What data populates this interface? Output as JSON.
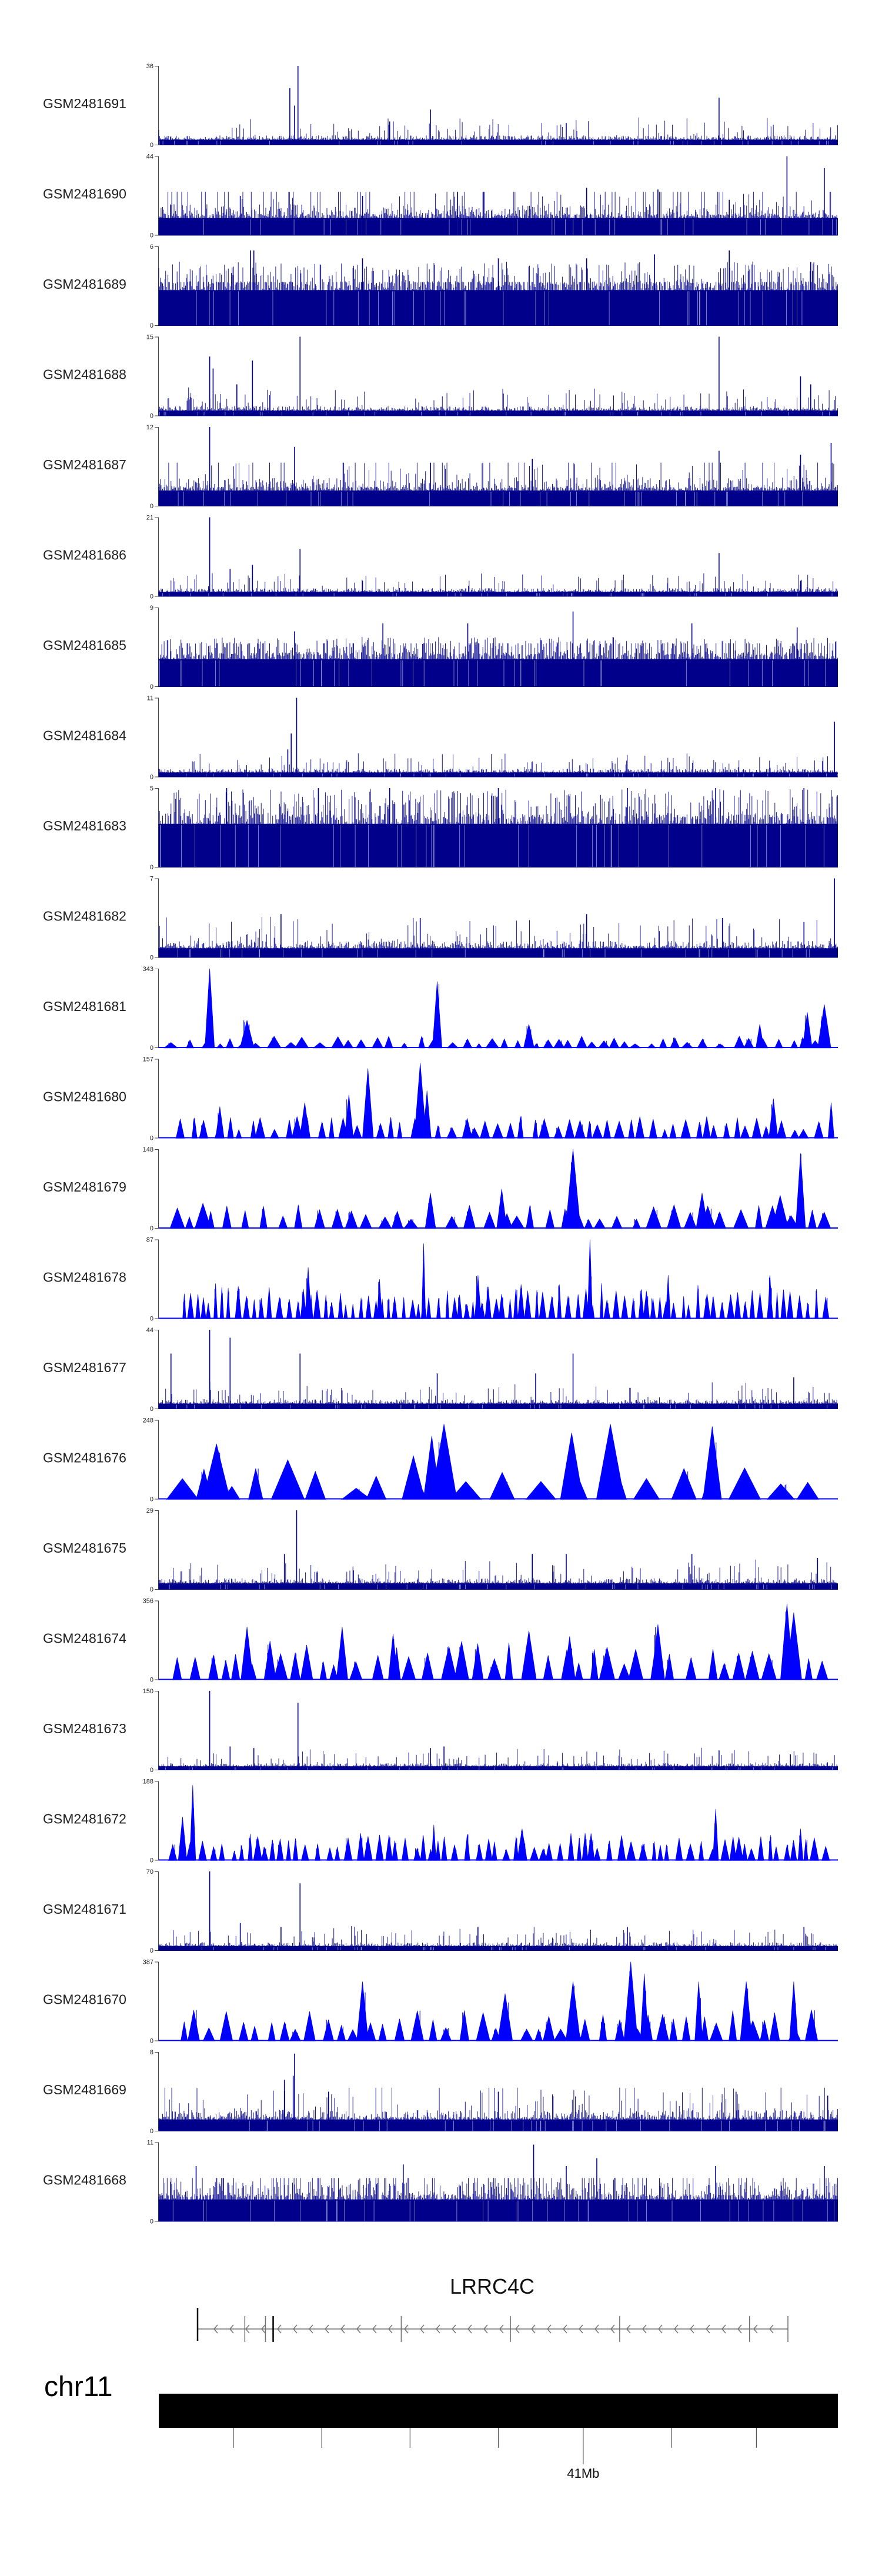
{
  "chart_data": {
    "type": "area",
    "description_style": "genome browser coverage tracks",
    "colors": {
      "dense": "#00008b",
      "sparse": "#0000ff",
      "ideogram": "#000000",
      "gene": "#707070"
    },
    "tracks": [
      {
        "name": "GSM2481691",
        "ymax": 36,
        "ymin": 0,
        "style": "dense",
        "seed": 11,
        "base": 0.07,
        "peaks": [
          [
            0.205,
            1.0
          ],
          [
            0.193,
            0.72
          ],
          [
            0.2,
            0.5
          ],
          [
            0.4,
            0.45
          ],
          [
            0.825,
            0.6
          ],
          [
            0.34,
            0.3
          ],
          [
            0.6,
            0.28
          ]
        ]
      },
      {
        "name": "GSM2481690",
        "ymax": 44,
        "ymin": 0,
        "style": "dense",
        "seed": 12,
        "base": 0.22,
        "peaks": [
          [
            0.925,
            1.0
          ],
          [
            0.44,
            0.55
          ],
          [
            0.63,
            0.6
          ],
          [
            0.735,
            0.58
          ],
          [
            0.3,
            0.5
          ],
          [
            0.84,
            0.45
          ],
          [
            0.12,
            0.5
          ],
          [
            0.98,
            0.85
          ]
        ]
      },
      {
        "name": "GSM2481689",
        "ymax": 6,
        "ymin": 0,
        "style": "dense",
        "seed": 13,
        "base": 0.45,
        "peaks": [
          [
            0.135,
            0.95
          ],
          [
            0.14,
            0.95
          ],
          [
            0.84,
            0.95
          ],
          [
            0.73,
            0.9
          ],
          [
            0.3,
            0.85
          ],
          [
            0.5,
            0.85
          ],
          [
            0.63,
            0.85
          ],
          [
            0.96,
            0.8
          ]
        ]
      },
      {
        "name": "GSM2481688",
        "ymax": 15,
        "ymin": 0,
        "style": "dense",
        "seed": 14,
        "base": 0.07,
        "peaks": [
          [
            0.208,
            1.0
          ],
          [
            0.825,
            1.0
          ],
          [
            0.138,
            0.7
          ],
          [
            0.08,
            0.6
          ],
          [
            0.075,
            0.75
          ],
          [
            0.115,
            0.4
          ],
          [
            0.945,
            0.5
          ],
          [
            0.96,
            0.4
          ]
        ]
      },
      {
        "name": "GSM2481687",
        "ymax": 12,
        "ymin": 0,
        "style": "dense",
        "seed": 15,
        "base": 0.2,
        "peaks": [
          [
            0.075,
            1.0
          ],
          [
            0.2,
            0.75
          ],
          [
            0.825,
            0.7
          ],
          [
            0.4,
            0.55
          ],
          [
            0.55,
            0.6
          ],
          [
            0.945,
            0.65
          ],
          [
            0.99,
            0.8
          ]
        ]
      },
      {
        "name": "GSM2481686",
        "ymax": 21,
        "ymin": 0,
        "style": "dense",
        "seed": 16,
        "base": 0.06,
        "peaks": [
          [
            0.075,
            1.0
          ],
          [
            0.138,
            0.4
          ],
          [
            0.208,
            0.6
          ],
          [
            0.105,
            0.35
          ],
          [
            0.825,
            0.55
          ],
          [
            0.945,
            0.2
          ],
          [
            0.3,
            0.2
          ]
        ]
      },
      {
        "name": "GSM2481685",
        "ymax": 9,
        "ymin": 0,
        "style": "dense",
        "seed": 17,
        "base": 0.35,
        "peaks": [
          [
            0.61,
            0.95
          ],
          [
            0.33,
            0.8
          ],
          [
            0.455,
            0.8
          ],
          [
            0.785,
            0.8
          ],
          [
            0.2,
            0.7
          ],
          [
            0.94,
            0.75
          ]
        ]
      },
      {
        "name": "GSM2481684",
        "ymax": 11,
        "ymin": 0,
        "style": "dense",
        "seed": 18,
        "base": 0.06,
        "peaks": [
          [
            0.203,
            1.0
          ],
          [
            0.195,
            0.55
          ],
          [
            0.19,
            0.35
          ],
          [
            0.995,
            0.7
          ],
          [
            0.62,
            0.15
          ],
          [
            0.9,
            0.12
          ]
        ]
      },
      {
        "name": "GSM2481683",
        "ymax": 5,
        "ymin": 0,
        "style": "dense",
        "seed": 19,
        "base": 0.55,
        "peaks": [
          [
            0.1,
            1.0
          ],
          [
            0.235,
            1.0
          ],
          [
            0.34,
            1.0
          ],
          [
            0.5,
            1.0
          ],
          [
            0.69,
            1.0
          ],
          [
            0.82,
            1.0
          ],
          [
            0.95,
            1.0
          ]
        ]
      },
      {
        "name": "GSM2481682",
        "ymax": 7,
        "ymin": 0,
        "style": "dense",
        "seed": 20,
        "base": 0.12,
        "peaks": [
          [
            0.995,
            1.0
          ],
          [
            0.18,
            0.55
          ],
          [
            0.385,
            0.5
          ],
          [
            0.63,
            0.55
          ],
          [
            0.83,
            0.5
          ],
          [
            0.95,
            0.45
          ]
        ]
      },
      {
        "name": "GSM2481681",
        "ymax": 343,
        "ymin": 0,
        "style": "sparse",
        "seed": 21,
        "count": 46,
        "maxfrac": 0.15,
        "peaks": [
          [
            0.075,
            1.0
          ],
          [
            0.41,
            0.84
          ],
          [
            0.955,
            0.45
          ],
          [
            0.98,
            0.55
          ],
          [
            0.885,
            0.3
          ],
          [
            0.13,
            0.35
          ],
          [
            0.545,
            0.3
          ]
        ]
      },
      {
        "name": "GSM2481680",
        "ymax": 157,
        "ymin": 0,
        "style": "sparse",
        "seed": 22,
        "count": 58,
        "maxfrac": 0.28,
        "peaks": [
          [
            0.385,
            0.95
          ],
          [
            0.308,
            0.88
          ],
          [
            0.395,
            0.6
          ],
          [
            0.28,
            0.55
          ],
          [
            0.215,
            0.45
          ],
          [
            0.09,
            0.4
          ],
          [
            0.905,
            0.5
          ],
          [
            0.99,
            0.45
          ]
        ]
      },
      {
        "name": "GSM2481679",
        "ymax": 148,
        "ymin": 0,
        "style": "sparse",
        "seed": 23,
        "count": 40,
        "maxfrac": 0.3,
        "peaks": [
          [
            0.61,
            1.0
          ],
          [
            0.945,
            0.95
          ],
          [
            0.915,
            0.42
          ],
          [
            0.505,
            0.5
          ],
          [
            0.4,
            0.45
          ],
          [
            0.8,
            0.45
          ],
          [
            0.065,
            0.32
          ]
        ]
      },
      {
        "name": "GSM2481678",
        "ymax": 87,
        "ymin": 0,
        "style": "sparse",
        "seed": 24,
        "count": 88,
        "maxfrac": 0.45,
        "peaks": [
          [
            0.635,
            1.0
          ],
          [
            0.39,
            0.95
          ],
          [
            0.22,
            0.65
          ],
          [
            0.75,
            0.55
          ],
          [
            0.47,
            0.55
          ],
          [
            0.325,
            0.5
          ],
          [
            0.9,
            0.55
          ]
        ]
      },
      {
        "name": "GSM2481677",
        "ymax": 44,
        "ymin": 0,
        "style": "dense",
        "seed": 25,
        "base": 0.07,
        "peaks": [
          [
            0.075,
            1.0
          ],
          [
            0.105,
            0.9
          ],
          [
            0.018,
            0.7
          ],
          [
            0.208,
            0.7
          ],
          [
            0.61,
            0.7
          ],
          [
            0.41,
            0.45
          ],
          [
            0.935,
            0.4
          ],
          [
            0.555,
            0.45
          ]
        ]
      },
      {
        "name": "GSM2481676",
        "ymax": 248,
        "ymin": 0,
        "style": "sparse",
        "seed": 26,
        "count": 20,
        "maxfrac": 0.4,
        "peaks": [
          [
            0.665,
            0.95
          ],
          [
            0.42,
            0.95
          ],
          [
            0.402,
            0.8
          ],
          [
            0.815,
            0.92
          ],
          [
            0.608,
            0.84
          ],
          [
            0.085,
            0.7
          ],
          [
            0.375,
            0.55
          ],
          [
            0.19,
            0.5
          ]
        ]
      },
      {
        "name": "GSM2481675",
        "ymax": 29,
        "ymin": 0,
        "style": "dense",
        "seed": 27,
        "base": 0.08,
        "peaks": [
          [
            0.203,
            1.0
          ],
          [
            0.185,
            0.45
          ],
          [
            0.55,
            0.45
          ],
          [
            0.6,
            0.45
          ],
          [
            0.785,
            0.45
          ],
          [
            0.97,
            0.4
          ]
        ]
      },
      {
        "name": "GSM2481674",
        "ymax": 356,
        "ymin": 0,
        "style": "sparse",
        "seed": 28,
        "count": 40,
        "maxfrac": 0.5,
        "peaks": [
          [
            0.925,
            0.96
          ],
          [
            0.935,
            0.85
          ],
          [
            0.13,
            0.67
          ],
          [
            0.27,
            0.67
          ],
          [
            0.545,
            0.62
          ],
          [
            0.735,
            0.7
          ],
          [
            0.605,
            0.55
          ],
          [
            0.345,
            0.58
          ]
        ]
      },
      {
        "name": "GSM2481673",
        "ymax": 150,
        "ymin": 0,
        "style": "dense",
        "seed": 29,
        "base": 0.05,
        "peaks": [
          [
            0.075,
            1.0
          ],
          [
            0.205,
            0.85
          ],
          [
            0.105,
            0.3
          ],
          [
            0.14,
            0.28
          ],
          [
            0.4,
            0.28
          ],
          [
            0.42,
            0.3
          ],
          [
            0.825,
            0.25
          ],
          [
            0.93,
            0.2
          ]
        ]
      },
      {
        "name": "GSM2481672",
        "ymax": 188,
        "ymin": 0,
        "style": "sparse",
        "seed": 30,
        "count": 70,
        "maxfrac": 0.35,
        "peaks": [
          [
            0.05,
            0.95
          ],
          [
            0.82,
            0.65
          ],
          [
            0.035,
            0.55
          ],
          [
            0.405,
            0.45
          ],
          [
            0.535,
            0.4
          ],
          [
            0.945,
            0.4
          ]
        ]
      },
      {
        "name": "GSM2481671",
        "ymax": 70,
        "ymin": 0,
        "style": "dense",
        "seed": 31,
        "base": 0.06,
        "peaks": [
          [
            0.075,
            1.0
          ],
          [
            0.208,
            0.85
          ],
          [
            0.12,
            0.35
          ],
          [
            0.18,
            0.3
          ],
          [
            0.47,
            0.3
          ],
          [
            0.69,
            0.3
          ],
          [
            0.95,
            0.3
          ]
        ]
      },
      {
        "name": "GSM2481670",
        "ymax": 387,
        "ymin": 0,
        "style": "sparse",
        "seed": 32,
        "count": 44,
        "maxfrac": 0.4,
        "peaks": [
          [
            0.695,
            1.0
          ],
          [
            0.715,
            0.85
          ],
          [
            0.3,
            0.75
          ],
          [
            0.61,
            0.75
          ],
          [
            0.795,
            0.75
          ],
          [
            0.935,
            0.75
          ],
          [
            0.865,
            0.75
          ],
          [
            0.51,
            0.6
          ]
        ]
      },
      {
        "name": "GSM2481669",
        "ymax": 8,
        "ymin": 0,
        "style": "dense",
        "seed": 33,
        "base": 0.15,
        "peaks": [
          [
            0.2,
            0.98
          ],
          [
            0.198,
            0.7
          ],
          [
            0.185,
            0.65
          ],
          [
            0.25,
            0.5
          ],
          [
            0.5,
            0.5
          ],
          [
            0.85,
            0.5
          ],
          [
            0.985,
            0.45
          ]
        ]
      },
      {
        "name": "GSM2481668",
        "ymax": 11,
        "ymin": 0,
        "style": "dense",
        "seed": 34,
        "base": 0.28,
        "peaks": [
          [
            0.552,
            0.97
          ],
          [
            0.36,
            0.72
          ],
          [
            0.645,
            0.8
          ],
          [
            0.055,
            0.7
          ],
          [
            0.6,
            0.7
          ],
          [
            0.82,
            0.7
          ],
          [
            0.98,
            0.7
          ]
        ]
      }
    ],
    "gene": {
      "name": "LRRC4C",
      "strand": "-",
      "exons": [
        0.0,
        0.08,
        0.115,
        0.128,
        0.345,
        0.53,
        0.715,
        0.935
      ]
    },
    "chromosome": {
      "name": "chr11",
      "ticks": [
        0.11,
        0.24,
        0.37,
        0.5,
        0.625,
        0.755,
        0.88
      ],
      "tick_labels": [
        {
          "position": 0.625,
          "text": "41Mb"
        }
      ]
    }
  }
}
